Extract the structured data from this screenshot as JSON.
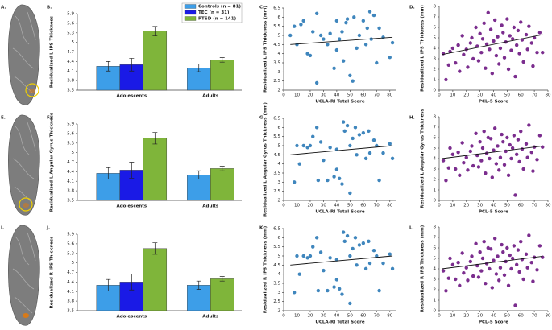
{
  "images": [
    {
      "label": "A."
    },
    {
      "label": "E."
    },
    {
      "label": "I."
    }
  ],
  "chart_data": [
    {
      "type": "bar",
      "label": "B.",
      "y_label": "Residualized L IPS Thickness",
      "categories": [
        "Adolescents",
        "Adults"
      ],
      "ylim": [
        3.5,
        5.9
      ],
      "yticks": [
        3.5,
        3.8,
        4.1,
        4.4,
        4.7,
        5,
        5.3,
        5.6,
        5.9
      ],
      "legend": true,
      "series": [
        {
          "name": "Controls (n = 81)",
          "color": "#3d9ee8",
          "values": [
            4.25,
            4.2
          ],
          "errors": [
            0.15,
            0.12
          ]
        },
        {
          "name": "TEC (n = 31)",
          "color": "#1a1ae6",
          "values": [
            4.3,
            null
          ],
          "errors": [
            0.2,
            null
          ]
        },
        {
          "name": "PTSD (n = 141)",
          "color": "#7fb53a",
          "values": [
            5.35,
            4.45
          ],
          "errors": [
            0.15,
            0.07
          ]
        }
      ]
    },
    {
      "type": "scatter",
      "label": "C.",
      "x_label": "UCLA-RI Total Score",
      "y_label": "Residualized L IPS Thickness (mm)",
      "color": "#3f86bd",
      "xlim": [
        0,
        85
      ],
      "xticks": [
        0,
        10,
        20,
        30,
        40,
        50,
        60,
        70,
        80
      ],
      "ylim": [
        2,
        6.5
      ],
      "yticks": [
        2,
        2.5,
        3,
        3.5,
        4,
        4.5,
        5,
        5.5,
        6,
        6.5
      ],
      "x": [
        5,
        8,
        10,
        13,
        15,
        18,
        20,
        22,
        25,
        25,
        28,
        30,
        33,
        35,
        38,
        40,
        40,
        42,
        44,
        45,
        47,
        48,
        50,
        52,
        53,
        55,
        57,
        60,
        62,
        63,
        65,
        66,
        68,
        70,
        72,
        75,
        80,
        82
      ],
      "values": [
        5.0,
        5.5,
        4.5,
        5.6,
        5.8,
        4.0,
        3.9,
        5.2,
        6.2,
        2.4,
        5.0,
        4.8,
        4.5,
        5.1,
        3.2,
        4.2,
        5.8,
        4.8,
        5.2,
        3.6,
        5.7,
        5.9,
        2.8,
        2.5,
        6.0,
        4.3,
        5.0,
        5.8,
        4.5,
        5.4,
        6.3,
        4.8,
        6.1,
        3.5,
        5.4,
        4.9,
        3.8,
        4.6
      ],
      "fit": {
        "x": [
          5,
          82
        ],
        "y": [
          4.5,
          4.9
        ]
      }
    },
    {
      "type": "scatter",
      "label": "D.",
      "x_label": "PCL-5 Score",
      "y_label": "Residualized L IPS Thickness (mm)",
      "color": "#7b2d8e",
      "xlim": [
        0,
        80
      ],
      "xticks": [
        0,
        10,
        20,
        30,
        40,
        50,
        60,
        70,
        80
      ],
      "ylim": [
        0,
        8
      ],
      "yticks": [
        0,
        1,
        2,
        3,
        4,
        5,
        6,
        7,
        8
      ],
      "x": [
        3,
        5,
        7,
        8,
        10,
        12,
        14,
        15,
        17,
        18,
        20,
        21,
        23,
        24,
        25,
        27,
        28,
        29,
        30,
        31,
        32,
        33,
        34,
        35,
        36,
        37,
        38,
        39,
        40,
        41,
        42,
        43,
        44,
        45,
        46,
        47,
        48,
        49,
        50,
        51,
        52,
        53,
        54,
        55,
        56,
        57,
        58,
        59,
        60,
        61,
        62,
        64,
        65,
        66,
        68,
        69,
        70,
        72,
        74,
        76
      ],
      "values": [
        3.5,
        1.0,
        2.4,
        3.7,
        4.0,
        2.6,
        4.3,
        1.8,
        5.2,
        3.4,
        3.9,
        2.2,
        4.5,
        5.0,
        3.0,
        6.0,
        4.2,
        2.8,
        5.4,
        3.6,
        4.9,
        6.4,
        2.1,
        4.4,
        7.4,
        3.9,
        5.8,
        1.6,
        4.7,
        6.7,
        3.3,
        5.1,
        2.5,
        4.0,
        6.2,
        5.5,
        3.1,
        4.6,
        6.8,
        2.0,
        5.2,
        3.8,
        4.9,
        6.0,
        1.3,
        4.3,
        5.7,
        3.5,
        6.5,
        4.8,
        2.7,
        5.3,
        3.9,
        6.1,
        4.5,
        2.3,
        5.0,
        3.6,
        5.5,
        3.6
      ],
      "fit": {
        "x": [
          2,
          76
        ],
        "y": [
          3.4,
          5.3
        ]
      }
    },
    {
      "type": "bar",
      "label": "F.",
      "y_label": "Residualized L Angular Gyrus Thickness",
      "categories": [
        "Adolescents",
        "Adults"
      ],
      "ylim": [
        3.5,
        5.9
      ],
      "yticks": [
        3.5,
        3.8,
        4.1,
        4.4,
        4.7,
        5,
        5.3,
        5.6,
        5.9
      ],
      "legend": false,
      "series": [
        {
          "color": "#3d9ee8",
          "values": [
            4.35,
            4.3
          ],
          "errors": [
            0.18,
            0.13
          ]
        },
        {
          "color": "#1a1ae6",
          "values": [
            4.45,
            null
          ],
          "errors": [
            0.25,
            null
          ]
        },
        {
          "color": "#7fb53a",
          "values": [
            5.45,
            4.5
          ],
          "errors": [
            0.18,
            0.07
          ]
        }
      ]
    },
    {
      "type": "scatter",
      "label": "G.",
      "x_label": "UCLA-RI Total Score",
      "y_label": "Residualized L Angular Gyrus Thickness (mm)",
      "color": "#3f86bd",
      "xlim": [
        0,
        85
      ],
      "xticks": [
        0,
        10,
        20,
        30,
        40,
        50,
        60,
        70,
        80
      ],
      "ylim": [
        2,
        6.5
      ],
      "yticks": [
        2,
        2.5,
        3,
        3.5,
        4,
        4.5,
        5,
        5.5,
        6,
        6.5
      ],
      "x": [
        8,
        10,
        12,
        15,
        18,
        20,
        22,
        25,
        26,
        28,
        30,
        33,
        35,
        38,
        40,
        40,
        42,
        44,
        45,
        46,
        48,
        50,
        50,
        52,
        54,
        55,
        57,
        60,
        62,
        64,
        65,
        68,
        70,
        72,
        75,
        80,
        82
      ],
      "values": [
        3.0,
        5.0,
        4.0,
        5.0,
        4.9,
        5.0,
        5.5,
        6.0,
        3.1,
        5.2,
        4.2,
        3.1,
        4.9,
        3.3,
        4.8,
        3.7,
        3.2,
        2.9,
        6.3,
        5.8,
        6.1,
        5.0,
        2.4,
        5.4,
        6.0,
        4.5,
        5.6,
        5.7,
        4.3,
        5.8,
        4.6,
        5.3,
        5.0,
        3.1,
        4.6,
        5.1,
        4.3
      ],
      "fit": {
        "x": [
          5,
          82
        ],
        "y": [
          4.5,
          5.0
        ]
      }
    },
    {
      "type": "scatter",
      "label": "H.",
      "x_label": "PCL-5 Score",
      "y_label": "Residualized L Angular Gyrus Thickness",
      "color": "#7b2d8e",
      "xlim": [
        0,
        80
      ],
      "xticks": [
        0,
        10,
        20,
        30,
        40,
        50,
        60,
        70,
        80
      ],
      "ylim": [
        0,
        8
      ],
      "yticks": [
        0,
        1,
        2,
        3,
        4,
        5,
        6,
        7,
        8
      ],
      "x": [
        3,
        5,
        7,
        8,
        10,
        12,
        14,
        15,
        17,
        18,
        20,
        21,
        23,
        24,
        25,
        27,
        28,
        29,
        30,
        31,
        32,
        33,
        34,
        35,
        36,
        37,
        38,
        39,
        40,
        41,
        42,
        43,
        44,
        45,
        46,
        47,
        48,
        49,
        50,
        51,
        52,
        53,
        54,
        55,
        56,
        57,
        58,
        59,
        60,
        61,
        62,
        64,
        65,
        66,
        68,
        69,
        70,
        72,
        74,
        76
      ],
      "values": [
        3.8,
        1.9,
        3.1,
        5.0,
        4.4,
        3.0,
        4.6,
        2.4,
        5.5,
        3.6,
        4.1,
        2.9,
        4.7,
        5.2,
        3.3,
        6.4,
        4.3,
        3.2,
        5.6,
        3.8,
        5.0,
        6.6,
        2.6,
        4.5,
        6.0,
        4.0,
        5.9,
        2.2,
        4.8,
        6.9,
        3.5,
        5.2,
        2.9,
        4.1,
        6.3,
        5.6,
        3.4,
        4.7,
        6.0,
        2.4,
        5.3,
        4.0,
        5.0,
        6.2,
        0.5,
        4.4,
        5.8,
        3.7,
        6.6,
        4.9,
        3.0,
        5.4,
        4.1,
        7.2,
        4.6,
        2.8,
        5.1,
        3.9,
        6.2,
        5.1
      ],
      "fit": {
        "x": [
          2,
          76
        ],
        "y": [
          4.0,
          5.2
        ]
      }
    },
    {
      "type": "bar",
      "label": "J.",
      "y_label": "Residualized R IPS Thickness",
      "categories": [
        "Adolescents",
        "Adults"
      ],
      "ylim": [
        3.5,
        5.9
      ],
      "yticks": [
        3.5,
        3.8,
        4.1,
        4.4,
        4.7,
        5,
        5.3,
        5.6,
        5.9
      ],
      "legend": false,
      "series": [
        {
          "color": "#3d9ee8",
          "values": [
            4.3,
            4.3
          ],
          "errors": [
            0.18,
            0.13
          ]
        },
        {
          "color": "#1a1ae6",
          "values": [
            4.4,
            null
          ],
          "errors": [
            0.25,
            null
          ]
        },
        {
          "color": "#7fb53a",
          "values": [
            5.45,
            4.5
          ],
          "errors": [
            0.18,
            0.07
          ]
        }
      ]
    },
    {
      "type": "scatter",
      "label": "K.",
      "x_label": "UCLA-RI Total Score",
      "y_label": "Residualized R IPS Thickness (mm)",
      "color": "#3f86bd",
      "xlim": [
        0,
        85
      ],
      "xticks": [
        0,
        10,
        20,
        30,
        40,
        50,
        60,
        70,
        80
      ],
      "ylim": [
        2,
        6.5
      ],
      "yticks": [
        2,
        2.5,
        3,
        3.5,
        4,
        4.5,
        5,
        5.5,
        6,
        6.5
      ],
      "x": [
        8,
        10,
        12,
        15,
        18,
        20,
        22,
        25,
        26,
        28,
        30,
        33,
        35,
        38,
        40,
        40,
        42,
        44,
        45,
        46,
        48,
        50,
        50,
        52,
        54,
        55,
        57,
        60,
        62,
        64,
        65,
        68,
        70,
        72,
        75,
        80,
        82
      ],
      "values": [
        3.0,
        5.0,
        4.0,
        5.0,
        4.9,
        5.0,
        5.5,
        6.0,
        3.1,
        5.2,
        4.2,
        3.1,
        4.9,
        3.3,
        4.8,
        3.7,
        3.2,
        2.9,
        6.3,
        5.8,
        6.1,
        5.0,
        2.4,
        5.4,
        6.0,
        4.5,
        5.6,
        5.7,
        4.3,
        5.8,
        4.6,
        5.3,
        5.0,
        3.1,
        4.6,
        5.1,
        4.3
      ],
      "fit": {
        "x": [
          5,
          82
        ],
        "y": [
          4.5,
          5.0
        ]
      }
    },
    {
      "type": "scatter",
      "label": "L.",
      "x_label": "PCL-5 Score",
      "y_label": "Residualized R IPS Thickness (mm)",
      "color": "#7b2d8e",
      "xlim": [
        0,
        80
      ],
      "xticks": [
        0,
        10,
        20,
        30,
        40,
        50,
        60,
        70,
        80
      ],
      "ylim": [
        0,
        8
      ],
      "yticks": [
        0,
        1,
        2,
        3,
        4,
        5,
        6,
        7,
        8
      ],
      "x": [
        3,
        5,
        7,
        8,
        10,
        12,
        14,
        15,
        17,
        18,
        20,
        21,
        23,
        24,
        25,
        27,
        28,
        29,
        30,
        31,
        32,
        33,
        34,
        35,
        36,
        37,
        38,
        39,
        40,
        41,
        42,
        43,
        44,
        45,
        46,
        47,
        48,
        49,
        50,
        51,
        52,
        53,
        54,
        55,
        56,
        57,
        58,
        59,
        60,
        61,
        62,
        64,
        65,
        66,
        68,
        69,
        70,
        72,
        74,
        76
      ],
      "values": [
        3.8,
        1.9,
        3.1,
        5.0,
        4.4,
        3.0,
        4.6,
        2.4,
        5.5,
        3.6,
        4.1,
        2.9,
        4.7,
        5.2,
        3.3,
        6.4,
        4.3,
        3.2,
        5.6,
        3.8,
        5.0,
        6.6,
        2.6,
        4.5,
        6.0,
        4.0,
        5.9,
        2.2,
        4.8,
        6.9,
        3.5,
        5.2,
        2.9,
        4.1,
        6.3,
        5.6,
        3.4,
        4.7,
        6.0,
        2.4,
        5.3,
        4.0,
        5.0,
        6.2,
        0.5,
        4.4,
        5.8,
        3.7,
        6.6,
        4.9,
        3.0,
        5.4,
        4.1,
        7.2,
        4.6,
        2.8,
        5.1,
        3.9,
        6.2,
        5.1
      ],
      "fit": {
        "x": [
          2,
          76
        ],
        "y": [
          4.0,
          5.2
        ]
      }
    }
  ]
}
